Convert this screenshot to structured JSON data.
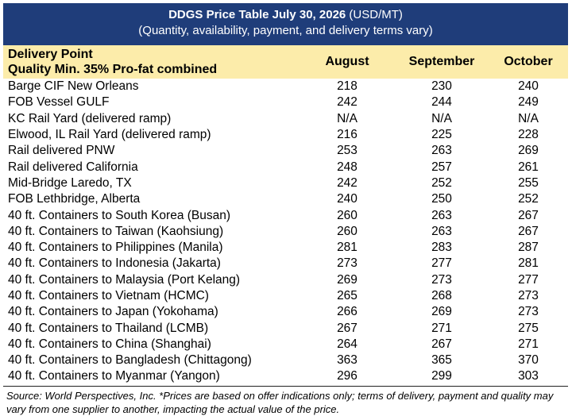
{
  "title": {
    "bold": "DDGS Price Table July 30, 2026",
    "unit": " (USD/MT)",
    "subtitle": "(Quantity, availability, payment, and delivery terms vary)"
  },
  "header": {
    "line1": "Delivery Point",
    "line2": "Quality Min. 35% Pro-fat combined",
    "columns": [
      "August",
      "September",
      "October"
    ]
  },
  "rows": [
    {
      "name": "Barge CIF New Orleans",
      "v": [
        "218",
        "230",
        "240"
      ]
    },
    {
      "name": "FOB Vessel GULF",
      "v": [
        "242",
        "244",
        "249"
      ]
    },
    {
      "name": "KC Rail Yard (delivered ramp)",
      "v": [
        "N/A",
        "N/A",
        "N/A"
      ]
    },
    {
      "name": "Elwood, IL Rail Yard (delivered ramp)",
      "v": [
        "216",
        "225",
        "228"
      ]
    },
    {
      "name": "Rail delivered PNW",
      "v": [
        "253",
        "263",
        "269"
      ]
    },
    {
      "name": "Rail delivered California",
      "v": [
        "248",
        "257",
        "261"
      ]
    },
    {
      "name": "Mid-Bridge Laredo, TX",
      "v": [
        "242",
        "252",
        "255"
      ]
    },
    {
      "name": "FOB Lethbridge, Alberta",
      "v": [
        "240",
        "250",
        "252"
      ]
    },
    {
      "name": "40 ft. Containers to South Korea (Busan)",
      "v": [
        "260",
        "263",
        "267"
      ]
    },
    {
      "name": "40 ft. Containers to Taiwan (Kaohsiung)",
      "v": [
        "260",
        "263",
        "267"
      ]
    },
    {
      "name": "40 ft. Containers to Philippines (Manila)",
      "v": [
        "281",
        "283",
        "287"
      ]
    },
    {
      "name": "40 ft. Containers to Indonesia (Jakarta)",
      "v": [
        "273",
        "277",
        "281"
      ]
    },
    {
      "name": "40 ft. Containers to Malaysia (Port Kelang)",
      "v": [
        "269",
        "273",
        "277"
      ]
    },
    {
      "name": "40 ft. Containers to Vietnam (HCMC)",
      "v": [
        "265",
        "268",
        "273"
      ]
    },
    {
      "name": "40 ft. Containers to Japan (Yokohama)",
      "v": [
        "266",
        "269",
        "273"
      ]
    },
    {
      "name": "40 ft. Containers to Thailand (LCMB)",
      "v": [
        "267",
        "271",
        "275"
      ]
    },
    {
      "name": "40 ft. Containers to China (Shanghai)",
      "v": [
        "264",
        "267",
        "271"
      ]
    },
    {
      "name": "40 ft. Containers to Bangladesh (Chittagong)",
      "v": [
        "363",
        "365",
        "370"
      ]
    },
    {
      "name": "40 ft. Containers to Myanmar (Yangon)",
      "v": [
        "296",
        "299",
        "303"
      ]
    }
  ],
  "footnote": "Source: World Perspectives, Inc. *Prices are based on offer indications only; terms of delivery, payment and quality may vary from one supplier to another, impacting the actual value of the price.",
  "colors": {
    "title_bg": "#1f3d7a",
    "header_bg": "#fcecaa"
  }
}
